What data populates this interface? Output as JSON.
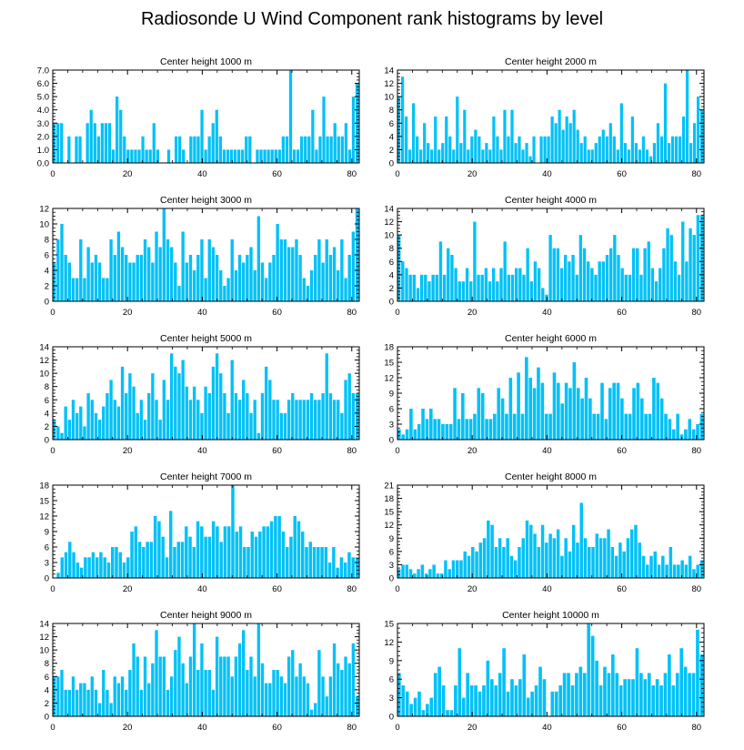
{
  "title": "Radiosonde U Wind Component rank histograms by level",
  "bar_color": "#00c1f7",
  "chart_data": [
    {
      "type": "bar",
      "title": "Center height 1000 m",
      "xlabel": "",
      "ylabel": "",
      "ylim": [
        0,
        7
      ],
      "yticks": [
        0,
        1,
        2,
        3,
        4,
        5,
        6,
        7
      ],
      "yticklabels": [
        "0.0",
        "1.0",
        "2.0",
        "3.0",
        "4.0",
        "5.0",
        "6.0",
        "7.0"
      ],
      "xticks": [
        0,
        20,
        40,
        60,
        80
      ],
      "values": [
        3,
        3,
        3,
        0,
        2,
        0,
        2,
        2,
        0,
        3,
        4,
        3,
        2,
        3,
        3,
        3,
        1,
        5,
        4,
        2,
        1,
        1,
        1,
        1,
        2,
        1,
        1,
        3,
        1,
        0,
        0,
        1,
        0,
        2,
        2,
        1,
        0,
        2,
        2,
        2,
        4,
        1,
        2,
        3,
        4,
        2,
        1,
        1,
        1,
        1,
        1,
        1,
        2,
        2,
        0,
        1,
        1,
        1,
        1,
        1,
        1,
        1,
        2,
        2,
        7,
        1,
        1,
        2,
        2,
        2,
        4,
        1,
        2,
        5,
        2,
        2,
        3,
        2,
        2,
        3,
        1,
        5,
        6
      ]
    },
    {
      "type": "bar",
      "title": "Center height 2000 m",
      "xlabel": "",
      "ylabel": "",
      "ylim": [
        0,
        14
      ],
      "yticks": [
        0,
        2,
        4,
        6,
        8,
        10,
        12,
        14
      ],
      "yticklabels": [
        "0",
        "2",
        "4",
        "6",
        "8",
        "10",
        "12",
        "14"
      ],
      "xticks": [
        0,
        20,
        40,
        60,
        80
      ],
      "values": [
        10,
        13,
        7,
        2,
        9,
        4,
        2,
        6,
        3,
        2,
        7,
        2,
        3,
        7,
        4,
        2,
        10,
        3,
        8,
        2,
        4,
        5,
        4,
        2,
        3,
        2,
        7,
        4,
        2,
        8,
        4,
        8,
        3,
        4,
        2,
        3,
        1,
        4,
        0,
        4,
        4,
        4,
        7,
        6,
        8,
        5,
        7,
        6,
        8,
        5,
        3,
        4,
        2,
        2,
        3,
        4,
        5,
        4,
        6,
        4,
        2,
        9,
        3,
        2,
        7,
        3,
        2,
        4,
        2,
        1,
        3,
        6,
        4,
        12,
        3,
        4,
        4,
        4,
        7,
        14,
        3,
        6,
        10,
        8
      ]
    },
    {
      "type": "bar",
      "title": "Center height 3000 m",
      "xlabel": "",
      "ylabel": "",
      "ylim": [
        0,
        12
      ],
      "yticks": [
        0,
        2,
        4,
        6,
        8,
        10,
        12
      ],
      "yticklabels": [
        "0",
        "2",
        "4",
        "6",
        "8",
        "10",
        "12"
      ],
      "xticks": [
        0,
        20,
        40,
        60,
        80
      ],
      "values": [
        5,
        8,
        10,
        6,
        5,
        3,
        3,
        8,
        3,
        7,
        5,
        6,
        5,
        3,
        3,
        8,
        6,
        9,
        7,
        6,
        5,
        5,
        6,
        6,
        8,
        7,
        5,
        9,
        7,
        12,
        8,
        7,
        5,
        2,
        9,
        5,
        6,
        4,
        6,
        8,
        3,
        8,
        7,
        6,
        4,
        2,
        3,
        8,
        4,
        6,
        5,
        6,
        7,
        4,
        11,
        5,
        3,
        5,
        6,
        10,
        8,
        8,
        7,
        7,
        8,
        6,
        3,
        2,
        4,
        6,
        8,
        5,
        8,
        6,
        7,
        4,
        8,
        3,
        6,
        9,
        12
      ]
    },
    {
      "type": "bar",
      "title": "Center height 4000 m",
      "xlabel": "",
      "ylabel": "",
      "ylim": [
        0,
        14
      ],
      "yticks": [
        0,
        2,
        4,
        6,
        8,
        10,
        12,
        14
      ],
      "yticklabels": [
        "0",
        "2",
        "4",
        "6",
        "8",
        "10",
        "12",
        "14"
      ],
      "xticks": [
        0,
        20,
        40,
        60,
        80
      ],
      "values": [
        10,
        6,
        5,
        4,
        4,
        2,
        4,
        4,
        3,
        4,
        4,
        9,
        4,
        8,
        7,
        5,
        3,
        3,
        5,
        3,
        12,
        4,
        4,
        5,
        3,
        5,
        3,
        5,
        9,
        4,
        4,
        5,
        5,
        4,
        8,
        3,
        6,
        5,
        2,
        1,
        10,
        8,
        8,
        5,
        7,
        6,
        7,
        4,
        10,
        8,
        6,
        5,
        4,
        6,
        6,
        7,
        8,
        10,
        7,
        5,
        4,
        4,
        8,
        8,
        4,
        8,
        9,
        5,
        3,
        5,
        8,
        11,
        10,
        6,
        4,
        12,
        6,
        11,
        10,
        13,
        13
      ]
    },
    {
      "type": "bar",
      "title": "Center height 5000 m",
      "xlabel": "",
      "ylabel": "",
      "ylim": [
        0,
        14
      ],
      "yticks": [
        0,
        2,
        4,
        6,
        8,
        10,
        12,
        14
      ],
      "yticklabels": [
        "0",
        "2",
        "4",
        "6",
        "8",
        "10",
        "12",
        "14"
      ],
      "xticks": [
        0,
        20,
        40,
        60,
        80
      ],
      "values": [
        3,
        2,
        1,
        5,
        3,
        6,
        4,
        5,
        2,
        7,
        6,
        4,
        3,
        5,
        7,
        9,
        6,
        5,
        11,
        7,
        10,
        8,
        4,
        6,
        3,
        7,
        10,
        6,
        3,
        9,
        6,
        13,
        11,
        10,
        12,
        8,
        6,
        8,
        6,
        4,
        8,
        7,
        11,
        13,
        10,
        7,
        4,
        12,
        7,
        6,
        9,
        7,
        4,
        6,
        1,
        7,
        11,
        9,
        6,
        6,
        4,
        4,
        6,
        7,
        6,
        6,
        6,
        6,
        7,
        6,
        6,
        7,
        13,
        7,
        6,
        6,
        4,
        9,
        10,
        7,
        7
      ]
    },
    {
      "type": "bar",
      "title": "Center height 6000 m",
      "xlabel": "",
      "ylabel": "",
      "ylim": [
        0,
        18
      ],
      "yticks": [
        0,
        3,
        6,
        9,
        12,
        15,
        18
      ],
      "yticklabels": [
        "0",
        "3",
        "6",
        "9",
        "12",
        "15",
        "18"
      ],
      "xticks": [
        0,
        20,
        40,
        60,
        80
      ],
      "values": [
        2,
        1,
        2,
        6,
        2,
        3,
        6,
        4,
        6,
        4,
        4,
        3,
        3,
        3,
        10,
        4,
        9,
        4,
        4,
        5,
        10,
        9,
        4,
        4,
        5,
        10,
        8,
        5,
        12,
        5,
        13,
        5,
        16,
        12,
        10,
        14,
        11,
        5,
        5,
        13,
        11,
        7,
        11,
        10,
        15,
        10,
        8,
        12,
        8,
        5,
        5,
        11,
        4,
        10,
        11,
        11,
        8,
        5,
        5,
        10,
        11,
        8,
        5,
        5,
        12,
        11,
        8,
        5,
        4,
        2,
        5,
        1,
        2,
        4,
        2,
        3,
        5
      ]
    },
    {
      "type": "bar",
      "title": "Center height 7000 m",
      "xlabel": "",
      "ylabel": "",
      "ylim": [
        0,
        18
      ],
      "yticks": [
        0,
        3,
        6,
        9,
        12,
        15,
        18
      ],
      "yticklabels": [
        "0",
        "3",
        "6",
        "9",
        "12",
        "15",
        "18"
      ],
      "xticks": [
        0,
        20,
        40,
        60,
        80
      ],
      "values": [
        0,
        1,
        4,
        5,
        7,
        5,
        3,
        2,
        4,
        4,
        5,
        4,
        5,
        4,
        3,
        6,
        6,
        5,
        3,
        4,
        9,
        10,
        7,
        6,
        7,
        7,
        12,
        11,
        8,
        4,
        13,
        6,
        7,
        7,
        10,
        8,
        6,
        11,
        10,
        8,
        8,
        11,
        10,
        7,
        10,
        10,
        18,
        9,
        10,
        6,
        6,
        9,
        8,
        9,
        10,
        10,
        11,
        12,
        12,
        9,
        6,
        8,
        12,
        11,
        9,
        6,
        7,
        6,
        6,
        6,
        6,
        3,
        6,
        2,
        4,
        3,
        5,
        4,
        4
      ]
    },
    {
      "type": "bar",
      "title": "Center height 8000 m",
      "xlabel": "",
      "ylabel": "",
      "ylim": [
        0,
        21
      ],
      "yticks": [
        0,
        3,
        6,
        9,
        12,
        15,
        18,
        21
      ],
      "yticklabels": [
        "0",
        "3",
        "6",
        "9",
        "12",
        "15",
        "18",
        "21"
      ],
      "xticks": [
        0,
        20,
        40,
        60,
        80
      ],
      "values": [
        2,
        3,
        3,
        2,
        1,
        2,
        3,
        1,
        2,
        3,
        1,
        1,
        4,
        2,
        4,
        4,
        4,
        6,
        5,
        7,
        6,
        8,
        9,
        13,
        12,
        7,
        9,
        7,
        9,
        5,
        4,
        7,
        9,
        13,
        12,
        10,
        7,
        12,
        8,
        10,
        9,
        11,
        5,
        9,
        6,
        12,
        8,
        17,
        9,
        7,
        7,
        10,
        9,
        9,
        11,
        7,
        5,
        8,
        6,
        9,
        11,
        12,
        8,
        5,
        3,
        5,
        6,
        3,
        5,
        3,
        7,
        3,
        3,
        4,
        3,
        5,
        2,
        3,
        4
      ]
    },
    {
      "type": "bar",
      "title": "Center height 9000 m",
      "xlabel": "",
      "ylabel": "",
      "ylim": [
        0,
        14
      ],
      "yticks": [
        0,
        2,
        4,
        6,
        8,
        10,
        12,
        14
      ],
      "yticklabels": [
        "0",
        "2",
        "4",
        "6",
        "8",
        "10",
        "12",
        "14"
      ],
      "xticks": [
        0,
        20,
        40,
        60,
        80
      ],
      "values": [
        6,
        6,
        7,
        4,
        4,
        6,
        4,
        5,
        5,
        4,
        6,
        4,
        2,
        7,
        4,
        2,
        6,
        5,
        6,
        4,
        7,
        11,
        9,
        4,
        9,
        5,
        8,
        13,
        9,
        9,
        4,
        6,
        10,
        12,
        8,
        5,
        9,
        14,
        7,
        11,
        7,
        7,
        4,
        12,
        9,
        9,
        9,
        6,
        9,
        11,
        13,
        7,
        9,
        6,
        14,
        8,
        5,
        5,
        7,
        7,
        6,
        5,
        9,
        10,
        6,
        8,
        6,
        5,
        1,
        2,
        10,
        6,
        3,
        6,
        11,
        8,
        7,
        9,
        8,
        11,
        3
      ]
    },
    {
      "type": "bar",
      "title": "Center height 10000 m",
      "xlabel": "",
      "ylabel": "",
      "ylim": [
        0,
        15
      ],
      "yticks": [
        0,
        3,
        6,
        9,
        12,
        15
      ],
      "yticklabels": [
        "0",
        "3",
        "6",
        "9",
        "12",
        "15"
      ],
      "xticks": [
        0,
        20,
        40,
        60,
        80
      ],
      "values": [
        7,
        5,
        4,
        2,
        3,
        4,
        1,
        2,
        3,
        7,
        8,
        5,
        1,
        1,
        5,
        11,
        3,
        7,
        5,
        5,
        4,
        5,
        9,
        6,
        5,
        7,
        11,
        4,
        6,
        5,
        6,
        10,
        3,
        4,
        5,
        8,
        6,
        0,
        4,
        4,
        5,
        7,
        7,
        5,
        7,
        8,
        7,
        15,
        13,
        9,
        5,
        8,
        7,
        10,
        7,
        5,
        6,
        6,
        6,
        11,
        7,
        6,
        7,
        5,
        6,
        5,
        7,
        10,
        5,
        7,
        11,
        8,
        7,
        7,
        14,
        10
      ]
    }
  ]
}
